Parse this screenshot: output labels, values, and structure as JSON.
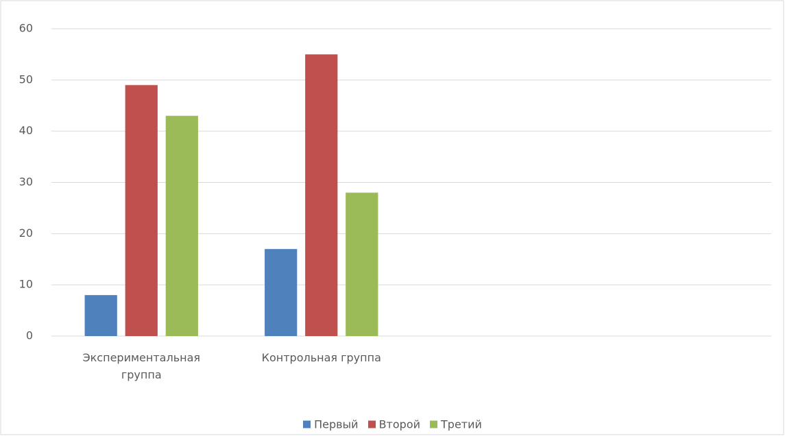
{
  "chart_data": {
    "type": "bar",
    "categories": [
      "Экспериментальная группа",
      "Контрольная группа",
      null,
      null
    ],
    "series": [
      {
        "name": "Первый",
        "color": "#4f81bd",
        "values": [
          8,
          17,
          null,
          null
        ]
      },
      {
        "name": "Второй",
        "color": "#c0504d",
        "values": [
          49,
          55,
          null,
          null
        ]
      },
      {
        "name": "Третий",
        "color": "#9bbb59",
        "values": [
          43,
          28,
          null,
          null
        ]
      }
    ],
    "ylim": [
      0,
      60
    ],
    "yticks": [
      0,
      10,
      20,
      30,
      40,
      50,
      60
    ],
    "grid": true,
    "legend": "bottom"
  }
}
